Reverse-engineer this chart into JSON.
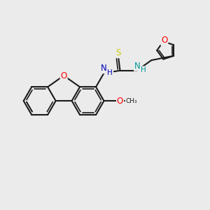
{
  "bg_color": "#EBEBEB",
  "bond_color": "#1a1a1a",
  "bond_width": 1.5,
  "atom_colors": {
    "O": "#FF0000",
    "N": "#0000BB",
    "N2": "#009999",
    "S": "#CCCC00",
    "C": "#1a1a1a",
    "H": "#1a1a1a"
  },
  "font_size": 7.5,
  "fig_width": 3.0,
  "fig_height": 3.0,
  "dpi": 100
}
